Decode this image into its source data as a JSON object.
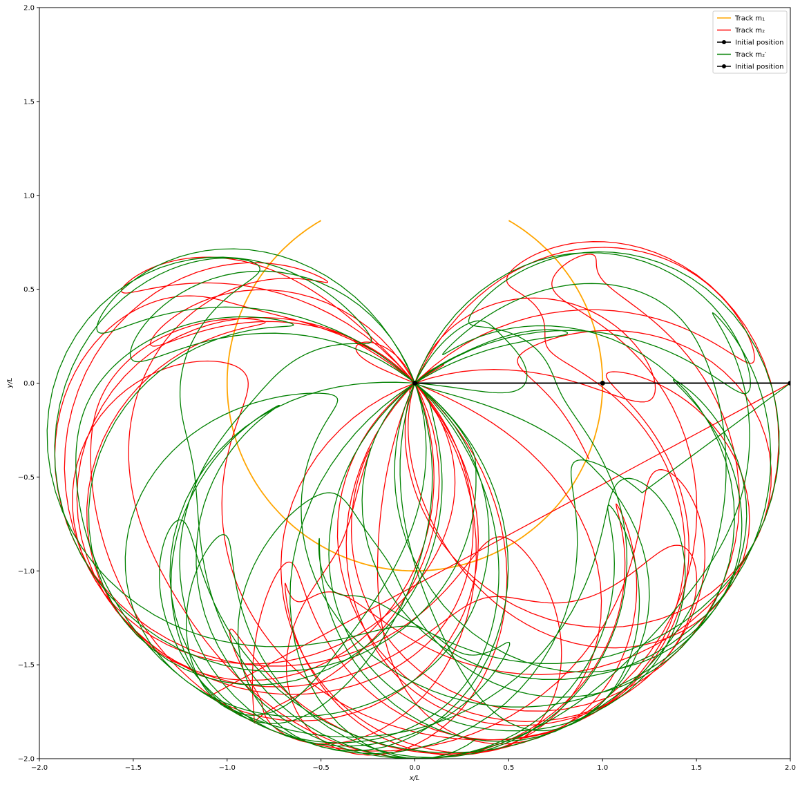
{
  "chart_data": {
    "type": "line",
    "title": "",
    "xlabel": "x/L",
    "ylabel": "y/L",
    "xlim": [
      -2.0,
      2.0
    ],
    "ylim": [
      -2.0,
      2.0
    ],
    "grid": false,
    "legend_position": "top-right",
    "xticks": [
      "−2.0",
      "−1.5",
      "−1.0",
      "−0.5",
      "0.0",
      "0.5",
      "1.0",
      "1.5",
      "2.0"
    ],
    "yticks": [
      "−2.0",
      "−1.5",
      "−1.0",
      "−0.5",
      "0.0",
      "0.5",
      "1.0",
      "1.5",
      "2.0"
    ],
    "legend": [
      {
        "label": "Track m₁",
        "color": "#ffa500",
        "marker": false
      },
      {
        "label": "Track m₂",
        "color": "#ff0000",
        "marker": false
      },
      {
        "label": "Initial position",
        "color": "#000000",
        "marker": true
      },
      {
        "label": "Track m₂′",
        "color": "#008000",
        "marker": false
      },
      {
        "label": "Initial position",
        "color": "#000000",
        "marker": true
      }
    ],
    "series": [
      {
        "key": "m1",
        "color": "#ffa500",
        "kind": "arc",
        "center": [
          0.0,
          0.0
        ],
        "radius": 1.0,
        "angle_range_deg": [
          -240,
          60
        ],
        "description_values": {
          "lowest_point": [
            0.0,
            -1.0
          ],
          "leftmost": [
            -1.0,
            0.0
          ],
          "rightmost": [
            1.0,
            0.0
          ]
        }
      },
      {
        "key": "m2",
        "color": "#ff0000",
        "kind": "chaotic",
        "sample_points": [
          [
            -0.35,
            0.4
          ],
          [
            -1.6,
            -0.56
          ],
          [
            -1.9,
            -0.86
          ],
          [
            1.9,
            -0.9
          ],
          [
            0.75,
            -0.52
          ],
          [
            -0.05,
            -2.0
          ]
        ]
      },
      {
        "key": "m2_prime",
        "color": "#008000",
        "kind": "chaotic",
        "sample_points": [
          [
            -1.92,
            0.18
          ],
          [
            -1.35,
            0.22
          ],
          [
            1.2,
            0.45
          ],
          [
            0.6,
            0.32
          ],
          [
            1.85,
            -0.22
          ],
          [
            0.0,
            -2.0
          ]
        ]
      },
      {
        "key": "arm",
        "color": "#000000",
        "kind": "initial_position",
        "points": [
          [
            0.0,
            0.0
          ],
          [
            1.0,
            0.0
          ],
          [
            2.0,
            0.0
          ]
        ]
      }
    ]
  }
}
